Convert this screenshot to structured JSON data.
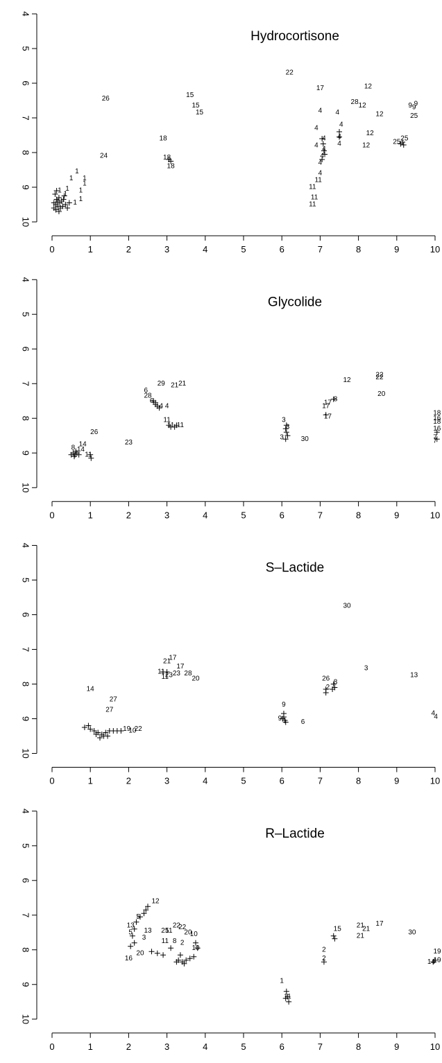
{
  "chart_data": [
    {
      "type": "scatter",
      "title": "Hydrocortisone",
      "xlim": [
        0,
        10
      ],
      "ylim": [
        4,
        10
      ],
      "y_reversed": true,
      "x_ticks": [
        "0",
        "1",
        "2",
        "3",
        "4",
        "5",
        "6",
        "7",
        "8",
        "9",
        "10"
      ],
      "y_ticks": [
        "4",
        "5",
        "6",
        "7",
        "8",
        "9",
        "10"
      ],
      "labels": [
        {
          "t": "22",
          "x": 6.2,
          "y": 5.7
        },
        {
          "t": "17",
          "x": 7.0,
          "y": 6.15
        },
        {
          "t": "12",
          "x": 8.25,
          "y": 6.1
        },
        {
          "t": "26",
          "x": 1.4,
          "y": 6.45
        },
        {
          "t": "15",
          "x": 3.6,
          "y": 6.35
        },
        {
          "t": "15",
          "x": 3.75,
          "y": 6.65
        },
        {
          "t": "15",
          "x": 3.85,
          "y": 6.85
        },
        {
          "t": "28",
          "x": 7.9,
          "y": 6.55
        },
        {
          "t": "12",
          "x": 8.1,
          "y": 6.65
        },
        {
          "t": "9",
          "x": 9.35,
          "y": 6.65
        },
        {
          "t": "9",
          "x": 9.5,
          "y": 6.6
        },
        {
          "t": "9",
          "x": 9.45,
          "y": 6.7
        },
        {
          "t": "25",
          "x": 9.45,
          "y": 6.95
        },
        {
          "t": "4",
          "x": 7.0,
          "y": 6.8
        },
        {
          "t": "4",
          "x": 7.45,
          "y": 6.85
        },
        {
          "t": "12",
          "x": 8.55,
          "y": 6.9
        },
        {
          "t": "4",
          "x": 7.55,
          "y": 7.2
        },
        {
          "t": "4",
          "x": 6.9,
          "y": 7.3
        },
        {
          "t": "18",
          "x": 2.9,
          "y": 7.6
        },
        {
          "t": "12",
          "x": 8.3,
          "y": 7.45
        },
        {
          "t": "25",
          "x": 9.0,
          "y": 7.7
        },
        {
          "t": "12",
          "x": 8.2,
          "y": 7.8
        },
        {
          "t": "24",
          "x": 1.35,
          "y": 8.1
        },
        {
          "t": "4",
          "x": 6.9,
          "y": 7.8
        },
        {
          "t": "18",
          "x": 3.0,
          "y": 8.15
        },
        {
          "t": "18",
          "x": 3.1,
          "y": 8.4
        },
        {
          "t": "4",
          "x": 7.0,
          "y": 8.3
        },
        {
          "t": "4",
          "x": 7.0,
          "y": 8.6
        },
        {
          "t": "11",
          "x": 6.95,
          "y": 8.8
        },
        {
          "t": "11",
          "x": 6.8,
          "y": 9.0
        },
        {
          "t": "11",
          "x": 6.85,
          "y": 9.3
        },
        {
          "t": "11",
          "x": 6.8,
          "y": 9.5
        },
        {
          "t": "1",
          "x": 0.65,
          "y": 8.55
        },
        {
          "t": "1",
          "x": 0.5,
          "y": 8.75
        },
        {
          "t": "1",
          "x": 0.85,
          "y": 8.75
        },
        {
          "t": "1",
          "x": 0.85,
          "y": 8.9
        },
        {
          "t": "1",
          "x": 0.75,
          "y": 9.1
        },
        {
          "t": "1",
          "x": 0.75,
          "y": 9.35
        },
        {
          "t": "1",
          "x": 0.4,
          "y": 9.05
        },
        {
          "t": "1",
          "x": 0.2,
          "y": 9.1
        },
        {
          "t": "1",
          "x": 0.35,
          "y": 9.2
        },
        {
          "t": "1",
          "x": 0.6,
          "y": 9.45
        },
        {
          "t": "4",
          "x": 7.1,
          "y": 7.6
        },
        {
          "t": "4",
          "x": 7.1,
          "y": 7.9
        },
        {
          "t": "4",
          "x": 7.5,
          "y": 7.55
        },
        {
          "t": "4",
          "x": 7.5,
          "y": 7.75
        },
        {
          "t": "25",
          "x": 9.2,
          "y": 7.6
        },
        {
          "t": "4",
          "x": 7.05,
          "y": 8.1
        }
      ],
      "crosses": [
        [
          0.08,
          9.2
        ],
        [
          0.12,
          9.35
        ],
        [
          0.18,
          9.3
        ],
        [
          0.1,
          9.5
        ],
        [
          0.15,
          9.55
        ],
        [
          0.05,
          9.45
        ],
        [
          0.2,
          9.45
        ],
        [
          0.25,
          9.4
        ],
        [
          0.3,
          9.35
        ],
        [
          0.22,
          9.6
        ],
        [
          0.1,
          9.65
        ],
        [
          0.35,
          9.5
        ],
        [
          0.45,
          9.45
        ],
        [
          0.4,
          9.6
        ],
        [
          0.15,
          9.4
        ],
        [
          0.28,
          9.55
        ],
        [
          0.18,
          9.7
        ],
        [
          0.05,
          9.6
        ],
        [
          0.32,
          9.25
        ],
        [
          0.12,
          9.1
        ],
        [
          7.05,
          7.6
        ],
        [
          7.08,
          7.75
        ],
        [
          7.1,
          7.95
        ],
        [
          7.12,
          8.05
        ],
        [
          7.05,
          8.2
        ],
        [
          7.5,
          7.4
        ],
        [
          7.5,
          7.55
        ],
        [
          9.15,
          7.7
        ],
        [
          9.1,
          7.75
        ],
        [
          9.18,
          7.78
        ],
        [
          3.05,
          8.2
        ],
        [
          3.1,
          8.25
        ]
      ]
    },
    {
      "type": "scatter",
      "title": "Glycolide",
      "xlim": [
        0,
        10
      ],
      "ylim": [
        4,
        10
      ],
      "y_reversed": true,
      "x_ticks": [
        "0",
        "1",
        "2",
        "3",
        "4",
        "5",
        "6",
        "7",
        "8",
        "9",
        "10"
      ],
      "y_ticks": [
        "4",
        "5",
        "6",
        "7",
        "8",
        "9",
        "10"
      ],
      "labels": [
        {
          "t": "22",
          "x": 8.55,
          "y": 6.75
        },
        {
          "t": "22",
          "x": 8.55,
          "y": 6.82
        },
        {
          "t": "12",
          "x": 7.7,
          "y": 6.9
        },
        {
          "t": "29",
          "x": 2.85,
          "y": 7.0
        },
        {
          "t": "21",
          "x": 3.2,
          "y": 7.05
        },
        {
          "t": "21",
          "x": 3.4,
          "y": 7.0
        },
        {
          "t": "6",
          "x": 2.45,
          "y": 7.2
        },
        {
          "t": "20",
          "x": 8.6,
          "y": 7.3
        },
        {
          "t": "28",
          "x": 2.5,
          "y": 7.35
        },
        {
          "t": "6",
          "x": 2.6,
          "y": 7.5
        },
        {
          "t": "4",
          "x": 2.85,
          "y": 7.65
        },
        {
          "t": "4",
          "x": 3.0,
          "y": 7.65
        },
        {
          "t": "17",
          "x": 7.2,
          "y": 7.55
        },
        {
          "t": "17",
          "x": 7.15,
          "y": 7.65
        },
        {
          "t": "8",
          "x": 7.4,
          "y": 7.45
        },
        {
          "t": "17",
          "x": 7.2,
          "y": 7.95
        },
        {
          "t": "11",
          "x": 3.0,
          "y": 8.05
        },
        {
          "t": "11",
          "x": 3.1,
          "y": 8.2
        },
        {
          "t": "11",
          "x": 3.35,
          "y": 8.2
        },
        {
          "t": "26",
          "x": 1.1,
          "y": 8.4
        },
        {
          "t": "3",
          "x": 6.05,
          "y": 8.05
        },
        {
          "t": "3",
          "x": 6.15,
          "y": 8.25
        },
        {
          "t": "3",
          "x": 6.0,
          "y": 8.55
        },
        {
          "t": "30",
          "x": 6.6,
          "y": 8.6
        },
        {
          "t": "23",
          "x": 2.0,
          "y": 8.7
        },
        {
          "t": "14",
          "x": 0.8,
          "y": 8.75
        },
        {
          "t": "8",
          "x": 0.55,
          "y": 8.85
        },
        {
          "t": "14",
          "x": 0.75,
          "y": 8.9
        },
        {
          "t": "18",
          "x": 10.05,
          "y": 7.85
        },
        {
          "t": "16",
          "x": 10.05,
          "y": 8.0
        },
        {
          "t": "18",
          "x": 10.05,
          "y": 8.1
        },
        {
          "t": "16",
          "x": 10.05,
          "y": 8.3
        },
        {
          "t": "7",
          "x": 10.0,
          "y": 8.55
        },
        {
          "t": "7",
          "x": 10.0,
          "y": 8.65
        },
        {
          "t": "11",
          "x": 0.95,
          "y": 9.05
        }
      ],
      "crosses": [
        [
          0.55,
          9.0
        ],
        [
          0.6,
          9.05
        ],
        [
          0.65,
          9.0
        ],
        [
          0.5,
          9.05
        ],
        [
          0.7,
          9.05
        ],
        [
          0.62,
          8.95
        ],
        [
          0.58,
          9.1
        ],
        [
          1.0,
          9.05
        ],
        [
          1.02,
          9.15
        ],
        [
          2.65,
          7.5
        ],
        [
          2.7,
          7.6
        ],
        [
          2.75,
          7.65
        ],
        [
          2.8,
          7.7
        ],
        [
          2.7,
          7.55
        ],
        [
          3.05,
          8.2
        ],
        [
          3.1,
          8.25
        ],
        [
          3.2,
          8.25
        ],
        [
          3.25,
          8.2
        ],
        [
          6.1,
          8.3
        ],
        [
          6.12,
          8.4
        ],
        [
          6.15,
          8.5
        ],
        [
          6.1,
          8.6
        ],
        [
          6.12,
          8.2
        ],
        [
          10.05,
          8.4
        ],
        [
          10.05,
          8.6
        ],
        [
          7.35,
          7.45
        ],
        [
          7.15,
          7.9
        ]
      ]
    },
    {
      "type": "scatter",
      "title": "S–Lactide",
      "xlim": [
        0,
        10
      ],
      "ylim": [
        4,
        10
      ],
      "y_reversed": true,
      "x_ticks": [
        "0",
        "1",
        "2",
        "3",
        "4",
        "5",
        "6",
        "7",
        "8",
        "9",
        "10"
      ],
      "y_ticks": [
        "4",
        "5",
        "6",
        "7",
        "8",
        "9",
        "10"
      ],
      "labels": [
        {
          "t": "30",
          "x": 7.7,
          "y": 5.75
        },
        {
          "t": "17",
          "x": 3.15,
          "y": 7.25
        },
        {
          "t": "21",
          "x": 3.0,
          "y": 7.35
        },
        {
          "t": "17",
          "x": 3.35,
          "y": 7.5
        },
        {
          "t": "11",
          "x": 2.85,
          "y": 7.65
        },
        {
          "t": "11",
          "x": 2.95,
          "y": 7.8
        },
        {
          "t": "23",
          "x": 3.05,
          "y": 7.75
        },
        {
          "t": "23",
          "x": 3.25,
          "y": 7.7
        },
        {
          "t": "28",
          "x": 3.55,
          "y": 7.7
        },
        {
          "t": "20",
          "x": 3.75,
          "y": 7.85
        },
        {
          "t": "3",
          "x": 8.2,
          "y": 7.55
        },
        {
          "t": "13",
          "x": 9.45,
          "y": 7.75
        },
        {
          "t": "26",
          "x": 7.15,
          "y": 7.85
        },
        {
          "t": "8",
          "x": 7.4,
          "y": 7.95
        },
        {
          "t": "2",
          "x": 7.2,
          "y": 8.1
        },
        {
          "t": "14",
          "x": 1.0,
          "y": 8.15
        },
        {
          "t": "27",
          "x": 1.6,
          "y": 8.45
        },
        {
          "t": "9",
          "x": 6.05,
          "y": 8.6
        },
        {
          "t": "27",
          "x": 1.5,
          "y": 8.75
        },
        {
          "t": "4",
          "x": 9.95,
          "y": 8.85
        },
        {
          "t": "4",
          "x": 10.02,
          "y": 8.95
        },
        {
          "t": "9",
          "x": 5.95,
          "y": 9.0
        },
        {
          "t": "6",
          "x": 6.55,
          "y": 9.1
        },
        {
          "t": "22",
          "x": 2.25,
          "y": 9.3
        },
        {
          "t": "19",
          "x": 1.95,
          "y": 9.3
        },
        {
          "t": "10",
          "x": 2.1,
          "y": 9.35
        }
      ],
      "crosses": [
        [
          0.85,
          9.25
        ],
        [
          1.0,
          9.3
        ],
        [
          1.1,
          9.35
        ],
        [
          1.2,
          9.4
        ],
        [
          1.3,
          9.45
        ],
        [
          1.4,
          9.4
        ],
        [
          1.5,
          9.35
        ],
        [
          1.6,
          9.35
        ],
        [
          1.7,
          9.35
        ],
        [
          1.35,
          9.5
        ],
        [
          1.25,
          9.55
        ],
        [
          1.45,
          9.5
        ],
        [
          0.95,
          9.2
        ],
        [
          1.15,
          9.45
        ],
        [
          1.8,
          9.35
        ],
        [
          6.05,
          8.85
        ],
        [
          6.05,
          8.95
        ],
        [
          6.08,
          9.05
        ],
        [
          6.1,
          9.1
        ],
        [
          6.02,
          9.0
        ],
        [
          7.35,
          8.0
        ],
        [
          7.38,
          8.1
        ],
        [
          7.32,
          8.15
        ],
        [
          7.15,
          8.15
        ],
        [
          7.15,
          8.25
        ],
        [
          3.0,
          7.65
        ],
        [
          2.9,
          7.65
        ]
      ]
    },
    {
      "type": "scatter",
      "title": "R–Lactide",
      "xlim": [
        0,
        10
      ],
      "ylim": [
        4,
        10
      ],
      "y_reversed": true,
      "x_ticks": [
        "0",
        "1",
        "2",
        "3",
        "4",
        "5",
        "6",
        "7",
        "8",
        "9",
        "10"
      ],
      "y_ticks": [
        "4",
        "5",
        "6",
        "7",
        "8",
        "9",
        "10"
      ],
      "labels": [
        {
          "t": "12",
          "x": 2.7,
          "y": 6.6
        },
        {
          "t": "5",
          "x": 2.25,
          "y": 7.05
        },
        {
          "t": "13",
          "x": 2.05,
          "y": 7.3
        },
        {
          "t": "5",
          "x": 2.05,
          "y": 7.5
        },
        {
          "t": "13",
          "x": 2.5,
          "y": 7.45
        },
        {
          "t": "3",
          "x": 2.4,
          "y": 7.65
        },
        {
          "t": "25",
          "x": 2.95,
          "y": 7.45
        },
        {
          "t": "11",
          "x": 3.05,
          "y": 7.45
        },
        {
          "t": "22",
          "x": 3.25,
          "y": 7.3
        },
        {
          "t": "22",
          "x": 3.4,
          "y": 7.35
        },
        {
          "t": "20",
          "x": 3.55,
          "y": 7.5
        },
        {
          "t": "10",
          "x": 3.7,
          "y": 7.55
        },
        {
          "t": "11",
          "x": 2.95,
          "y": 7.75
        },
        {
          "t": "8",
          "x": 3.2,
          "y": 7.75
        },
        {
          "t": "2",
          "x": 3.4,
          "y": 7.8
        },
        {
          "t": "10",
          "x": 3.75,
          "y": 7.95
        },
        {
          "t": "20",
          "x": 2.3,
          "y": 8.1
        },
        {
          "t": "16",
          "x": 2.0,
          "y": 8.25
        },
        {
          "t": "15",
          "x": 7.45,
          "y": 7.4
        },
        {
          "t": "21",
          "x": 8.05,
          "y": 7.3
        },
        {
          "t": "17",
          "x": 8.55,
          "y": 7.25
        },
        {
          "t": "21",
          "x": 8.2,
          "y": 7.4
        },
        {
          "t": "21",
          "x": 8.05,
          "y": 7.6
        },
        {
          "t": "30",
          "x": 9.4,
          "y": 7.5
        },
        {
          "t": "19",
          "x": 10.1,
          "y": 8.05
        },
        {
          "t": "19",
          "x": 10.1,
          "y": 8.3
        },
        {
          "t": "14",
          "x": 9.9,
          "y": 8.35
        },
        {
          "t": "1",
          "x": 6.0,
          "y": 8.9
        },
        {
          "t": "11",
          "x": 6.15,
          "y": 9.35
        },
        {
          "t": "2",
          "x": 7.1,
          "y": 8.0
        },
        {
          "t": "2",
          "x": 7.1,
          "y": 8.25
        }
      ],
      "crosses": [
        [
          2.5,
          6.75
        ],
        [
          2.45,
          6.85
        ],
        [
          2.4,
          6.95
        ],
        [
          2.3,
          7.05
        ],
        [
          2.2,
          7.2
        ],
        [
          2.15,
          7.4
        ],
        [
          2.1,
          7.6
        ],
        [
          2.15,
          7.8
        ],
        [
          2.05,
          7.9
        ],
        [
          2.6,
          8.05
        ],
        [
          2.75,
          8.1
        ],
        [
          2.9,
          8.15
        ],
        [
          3.3,
          8.3
        ],
        [
          3.4,
          8.35
        ],
        [
          3.5,
          8.3
        ],
        [
          3.6,
          8.25
        ],
        [
          3.7,
          8.2
        ],
        [
          3.35,
          8.15
        ],
        [
          3.25,
          8.35
        ],
        [
          3.45,
          8.4
        ],
        [
          3.1,
          7.95
        ],
        [
          3.75,
          7.8
        ],
        [
          3.8,
          7.95
        ],
        [
          6.12,
          9.2
        ],
        [
          6.15,
          9.35
        ],
        [
          6.18,
          9.5
        ],
        [
          6.1,
          9.4
        ],
        [
          7.35,
          7.6
        ],
        [
          7.38,
          7.68
        ],
        [
          9.95,
          8.35
        ],
        [
          10.0,
          8.3
        ],
        [
          7.1,
          8.35
        ]
      ]
    }
  ]
}
